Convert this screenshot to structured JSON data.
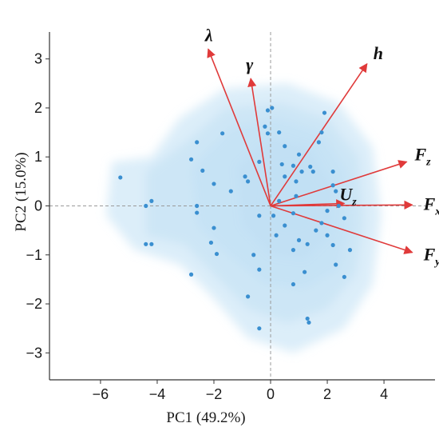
{
  "chart_data": {
    "type": "scatter",
    "subtype": "pca-biplot",
    "xlabel": "PC1 (49.2%)",
    "ylabel": "PC2 (15.0%)",
    "xlim": [
      -7.8,
      5.8
    ],
    "ylim": [
      -3.55,
      3.55
    ],
    "xticks": [
      -6,
      -4,
      -2,
      0,
      2,
      4
    ],
    "yticks": [
      -3,
      -2,
      -1,
      0,
      1,
      2,
      3
    ],
    "grid": false,
    "zero_lines": "dashed",
    "density_fill_color": "#bfe0f4",
    "point_color": "#3a8fd0",
    "arrow_color": "#e03a3a",
    "points": [
      [
        -5.3,
        0.58
      ],
      [
        -4.4,
        0.0
      ],
      [
        -4.2,
        0.1
      ],
      [
        -4.4,
        -0.78
      ],
      [
        -4.2,
        -0.78
      ],
      [
        -2.6,
        1.3
      ],
      [
        -2.8,
        0.95
      ],
      [
        -2.4,
        0.72
      ],
      [
        -2.0,
        0.45
      ],
      [
        -2.6,
        0.0
      ],
      [
        -2.6,
        -0.14
      ],
      [
        -2.0,
        -0.45
      ],
      [
        -2.1,
        -0.75
      ],
      [
        -1.9,
        -0.98
      ],
      [
        -2.8,
        -1.4
      ],
      [
        -1.7,
        1.48
      ],
      [
        -1.4,
        0.3
      ],
      [
        -0.9,
        0.6
      ],
      [
        -0.8,
        0.5
      ],
      [
        -0.4,
        0.9
      ],
      [
        -0.4,
        -0.2
      ],
      [
        -0.6,
        -1.0
      ],
      [
        -0.8,
        -1.85
      ],
      [
        -0.4,
        -1.3
      ],
      [
        -0.1,
        1.48
      ],
      [
        -0.2,
        1.62
      ],
      [
        -0.1,
        1.95
      ],
      [
        0.1,
        -0.2
      ],
      [
        0.3,
        1.5
      ],
      [
        0.4,
        0.85
      ],
      [
        0.5,
        0.6
      ],
      [
        0.8,
        0.82
      ],
      [
        0.9,
        0.5
      ],
      [
        0.9,
        0.2
      ],
      [
        1.0,
        1.05
      ],
      [
        1.1,
        0.7
      ],
      [
        1.4,
        0.8
      ],
      [
        1.5,
        0.7
      ],
      [
        1.7,
        1.3
      ],
      [
        1.8,
        1.5
      ],
      [
        1.9,
        1.9
      ],
      [
        2.2,
        0.7
      ],
      [
        2.2,
        0.42
      ],
      [
        2.3,
        0.3
      ],
      [
        0.8,
        -0.15
      ],
      [
        0.5,
        -0.4
      ],
      [
        0.2,
        -0.6
      ],
      [
        0.8,
        -0.9
      ],
      [
        1.0,
        -0.7
      ],
      [
        1.3,
        -0.78
      ],
      [
        1.6,
        -0.5
      ],
      [
        1.8,
        -0.35
      ],
      [
        2.0,
        -0.6
      ],
      [
        2.2,
        -0.8
      ],
      [
        2.3,
        -1.2
      ],
      [
        2.6,
        -0.25
      ],
      [
        2.6,
        -1.45
      ],
      [
        2.8,
        -0.9
      ],
      [
        1.2,
        -1.35
      ],
      [
        0.8,
        -1.6
      ],
      [
        1.3,
        -2.3
      ],
      [
        1.35,
        -2.38
      ],
      [
        -0.4,
        -2.5
      ],
      [
        2.0,
        -0.1
      ],
      [
        2.4,
        0.0
      ],
      [
        0.5,
        1.22
      ],
      [
        0.05,
        2.0
      ],
      [
        0.3,
        0.1
      ]
    ],
    "vectors": [
      {
        "name": "λ",
        "sub": "",
        "x": -2.2,
        "y": 3.2
      },
      {
        "name": "γ",
        "sub": "",
        "x": -0.7,
        "y": 2.6
      },
      {
        "name": "h",
        "sub": "",
        "x": 3.4,
        "y": 2.9
      },
      {
        "name": "F",
        "sub": "z",
        "x": 4.8,
        "y": 0.9
      },
      {
        "name": "U",
        "sub": "z",
        "x": 2.6,
        "y": 0.05
      },
      {
        "name": "F",
        "sub": "x",
        "x": 5.0,
        "y": 0.02
      },
      {
        "name": "F",
        "sub": "y",
        "x": 5.0,
        "y": -0.95
      }
    ]
  }
}
